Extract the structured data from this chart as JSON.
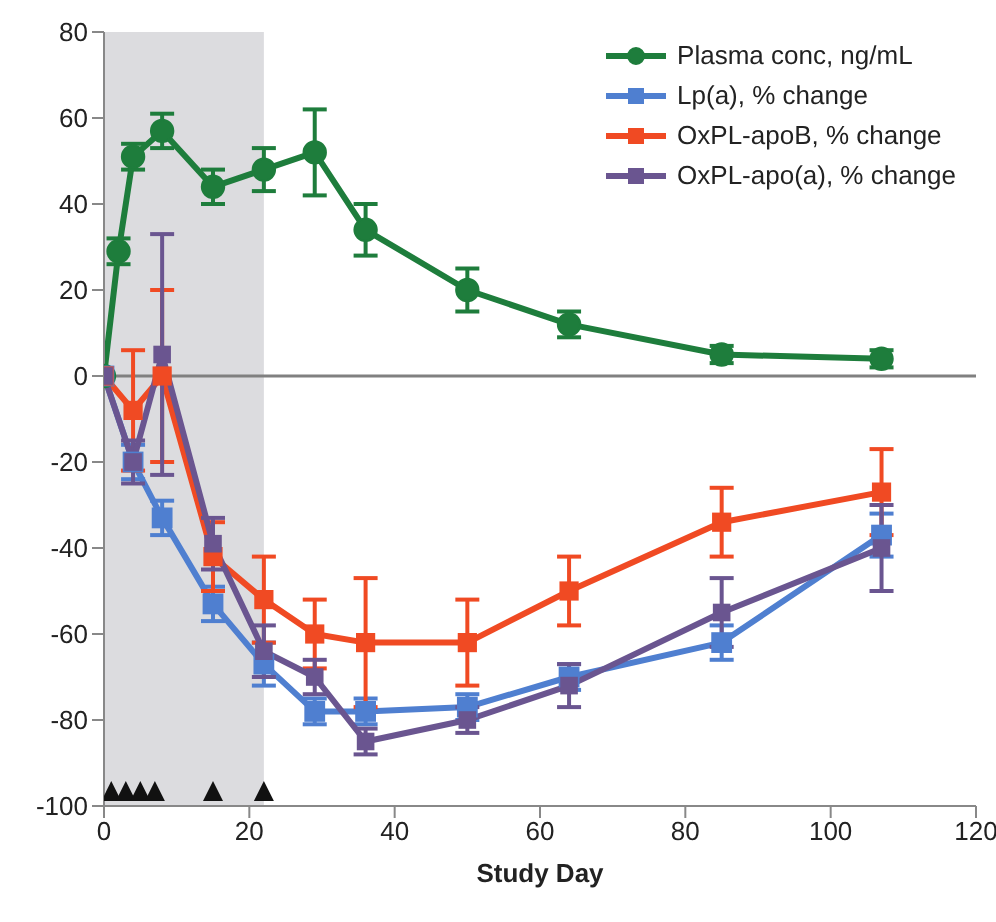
{
  "chart_data": {
    "type": "line",
    "xlabel": "Study Day",
    "xlim": [
      0,
      120
    ],
    "xticks": [
      0,
      20,
      40,
      60,
      80,
      100,
      120
    ],
    "ylim": [
      -100,
      80
    ],
    "yticks": [
      -100,
      -80,
      -60,
      -40,
      -20,
      0,
      20,
      40,
      60,
      80
    ],
    "grid": false,
    "legend": "top right",
    "bands": [
      {
        "axis": "x",
        "from": 0,
        "to": 22,
        "color": "#dcdcdf"
      }
    ],
    "ref_lines": [
      {
        "axis": "y",
        "value": 0,
        "color": "#808080"
      }
    ],
    "series": [
      {
        "name": "Plasma conc, ng/mL",
        "color": "#1e7d3c",
        "marker": "circle",
        "x": [
          0,
          2,
          4,
          8,
          15,
          22,
          29,
          36,
          50,
          64,
          85,
          107
        ],
        "values": [
          0,
          29,
          51,
          57,
          44,
          48,
          52,
          34,
          20,
          12,
          5,
          4
        ],
        "errors": [
          0,
          3,
          3,
          4,
          4,
          5,
          10,
          6,
          5,
          3,
          2,
          2
        ]
      },
      {
        "name": "Lp(a), % change",
        "color": "#4f7fd0",
        "marker": "square",
        "x": [
          0,
          4,
          8,
          15,
          22,
          29,
          36,
          50,
          64,
          85,
          107
        ],
        "values": [
          0,
          -20,
          -33,
          -53,
          -67,
          -78,
          -78,
          -77,
          -70,
          -62,
          -37
        ],
        "errors": [
          0,
          4,
          4,
          4,
          5,
          3,
          3,
          3,
          3,
          4,
          5
        ]
      },
      {
        "name": "OxPL-apoB, % change",
        "color": "#f04a23",
        "marker": "square",
        "x": [
          0,
          4,
          8,
          15,
          22,
          29,
          36,
          50,
          64,
          85,
          107
        ],
        "values": [
          0,
          -8,
          0,
          -42,
          -52,
          -60,
          -62,
          -62,
          -50,
          -34,
          -27
        ],
        "errors": [
          0,
          14,
          20,
          8,
          10,
          8,
          15,
          10,
          8,
          8,
          10
        ]
      },
      {
        "name": "OxPL-apo(a), % change",
        "color": "#6a5590",
        "marker": "square",
        "x": [
          0,
          4,
          8,
          15,
          22,
          29,
          36,
          50,
          64,
          85,
          107
        ],
        "values": [
          0,
          -20,
          5,
          -39,
          -64,
          -70,
          -85,
          -80,
          -72,
          -55,
          -40
        ],
        "errors": [
          0,
          5,
          28,
          6,
          6,
          4,
          3,
          3,
          5,
          8,
          10
        ]
      },
      {
        "type": "scatter",
        "color": "#111111",
        "marker": "triangle",
        "x": [
          1,
          3,
          5,
          7,
          15,
          22
        ],
        "values": [
          -97,
          -97,
          -97,
          -97,
          -97,
          -97
        ]
      }
    ]
  }
}
